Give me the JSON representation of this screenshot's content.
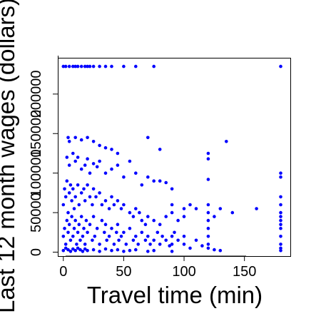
{
  "chart_data": {
    "type": "scatter",
    "title": "",
    "xlabel": "Travel time (min)",
    "ylabel": "Last 12 month wages (dollars)",
    "xlim": [
      -4,
      188
    ],
    "ylim": [
      -5000,
      245000
    ],
    "xticks": [
      0,
      50,
      100,
      150
    ],
    "xtick_labels": [
      "0",
      "50",
      "100",
      "150"
    ],
    "yticks": [
      0,
      50000,
      100000,
      150000,
      200000
    ],
    "ytick_labels": [
      "0",
      "50000",
      "100000",
      "150000",
      "200000"
    ],
    "grid": false,
    "legend": "none",
    "point_color": "#0000ff",
    "series": [
      {
        "values_xy": [
          [
            0,
            235000
          ],
          [
            2,
            235000
          ],
          [
            5,
            235000
          ],
          [
            8,
            235000
          ],
          [
            10,
            235000
          ],
          [
            12,
            235000
          ],
          [
            15,
            235000
          ],
          [
            18,
            235000
          ],
          [
            20,
            235000
          ],
          [
            22,
            235000
          ],
          [
            25,
            235000
          ],
          [
            30,
            235000
          ],
          [
            35,
            235000
          ],
          [
            40,
            235000
          ],
          [
            50,
            235000
          ],
          [
            60,
            235000
          ],
          [
            75,
            235000
          ],
          [
            180,
            235000
          ],
          [
            4,
            145000
          ],
          [
            10,
            145000
          ],
          [
            5,
            140000
          ],
          [
            15,
            142000
          ],
          [
            20,
            145000
          ],
          [
            25,
            140000
          ],
          [
            30,
            135000
          ],
          [
            35,
            132000
          ],
          [
            40,
            130000
          ],
          [
            45,
            125000
          ],
          [
            55,
            115000
          ],
          [
            70,
            145000
          ],
          [
            80,
            130000
          ],
          [
            120,
            125000
          ],
          [
            120,
            118000
          ],
          [
            135,
            140000
          ],
          [
            3,
            120000
          ],
          [
            5,
            110000
          ],
          [
            8,
            125000
          ],
          [
            10,
            115000
          ],
          [
            12,
            120000
          ],
          [
            15,
            105000
          ],
          [
            18,
            110000
          ],
          [
            20,
            118000
          ],
          [
            22,
            100000
          ],
          [
            25,
            112000
          ],
          [
            28,
            108000
          ],
          [
            30,
            115000
          ],
          [
            35,
            100000
          ],
          [
            40,
            105000
          ],
          [
            45,
            110000
          ],
          [
            50,
            95000
          ],
          [
            60,
            100000
          ],
          [
            65,
            85000
          ],
          [
            70,
            95000
          ],
          [
            75,
            90000
          ],
          [
            80,
            90000
          ],
          [
            85,
            88000
          ],
          [
            90,
            80000
          ],
          [
            120,
            92000
          ],
          [
            180,
            100000
          ],
          [
            180,
            95000
          ],
          [
            0,
            60000
          ],
          [
            1,
            80000
          ],
          [
            2,
            70000
          ],
          [
            3,
            90000
          ],
          [
            4,
            50000
          ],
          [
            5,
            75000
          ],
          [
            6,
            85000
          ],
          [
            7,
            65000
          ],
          [
            8,
            80000
          ],
          [
            9,
            55000
          ],
          [
            10,
            70000
          ],
          [
            12,
            85000
          ],
          [
            13,
            60000
          ],
          [
            15,
            75000
          ],
          [
            17,
            80000
          ],
          [
            18,
            65000
          ],
          [
            20,
            85000
          ],
          [
            22,
            70000
          ],
          [
            24,
            60000
          ],
          [
            25,
            80000
          ],
          [
            27,
            70000
          ],
          [
            30,
            75000
          ],
          [
            32,
            60000
          ],
          [
            35,
            65000
          ],
          [
            38,
            55000
          ],
          [
            40,
            70000
          ],
          [
            42,
            60000
          ],
          [
            45,
            65000
          ],
          [
            48,
            55000
          ],
          [
            50,
            60000
          ],
          [
            55,
            50000
          ],
          [
            58,
            45000
          ],
          [
            60,
            55000
          ],
          [
            63,
            50000
          ],
          [
            65,
            40000
          ],
          [
            68,
            35000
          ],
          [
            70,
            45000
          ],
          [
            75,
            40000
          ],
          [
            80,
            35000
          ],
          [
            85,
            45000
          ],
          [
            90,
            60000
          ],
          [
            90,
            50000
          ],
          [
            95,
            40000
          ],
          [
            100,
            55000
          ],
          [
            100,
            45000
          ],
          [
            105,
            60000
          ],
          [
            110,
            55000
          ],
          [
            120,
            60000
          ],
          [
            120,
            50000
          ],
          [
            120,
            40000
          ],
          [
            120,
            30000
          ],
          [
            125,
            45000
          ],
          [
            130,
            55000
          ],
          [
            140,
            50000
          ],
          [
            160,
            55000
          ],
          [
            180,
            70000
          ],
          [
            180,
            60000
          ],
          [
            180,
            50000
          ],
          [
            180,
            45000
          ],
          [
            180,
            40000
          ],
          [
            180,
            35000
          ],
          [
            180,
            30000
          ],
          [
            0,
            20000
          ],
          [
            1,
            30000
          ],
          [
            2,
            10000
          ],
          [
            3,
            40000
          ],
          [
            4,
            25000
          ],
          [
            5,
            35000
          ],
          [
            6,
            15000
          ],
          [
            7,
            45000
          ],
          [
            8,
            20000
          ],
          [
            9,
            30000
          ],
          [
            10,
            40000
          ],
          [
            11,
            10000
          ],
          [
            12,
            25000
          ],
          [
            13,
            35000
          ],
          [
            14,
            15000
          ],
          [
            15,
            45000
          ],
          [
            16,
            20000
          ],
          [
            17,
            30000
          ],
          [
            18,
            10000
          ],
          [
            19,
            40000
          ],
          [
            20,
            25000
          ],
          [
            22,
            35000
          ],
          [
            24,
            15000
          ],
          [
            25,
            45000
          ],
          [
            26,
            20000
          ],
          [
            28,
            30000
          ],
          [
            30,
            10000
          ],
          [
            32,
            40000
          ],
          [
            34,
            25000
          ],
          [
            35,
            35000
          ],
          [
            36,
            15000
          ],
          [
            38,
            20000
          ],
          [
            40,
            30000
          ],
          [
            42,
            10000
          ],
          [
            44,
            25000
          ],
          [
            45,
            35000
          ],
          [
            46,
            15000
          ],
          [
            48,
            20000
          ],
          [
            50,
            25000
          ],
          [
            52,
            10000
          ],
          [
            55,
            30000
          ],
          [
            58,
            15000
          ],
          [
            60,
            20000
          ],
          [
            62,
            10000
          ],
          [
            65,
            25000
          ],
          [
            68,
            15000
          ],
          [
            70,
            20000
          ],
          [
            72,
            10000
          ],
          [
            75,
            15000
          ],
          [
            78,
            25000
          ],
          [
            80,
            10000
          ],
          [
            82,
            20000
          ],
          [
            85,
            15000
          ],
          [
            88,
            8000
          ],
          [
            90,
            20000
          ],
          [
            90,
            10000
          ],
          [
            92,
            25000
          ],
          [
            95,
            15000
          ],
          [
            100,
            20000
          ],
          [
            100,
            10000
          ],
          [
            105,
            5000
          ],
          [
            110,
            15000
          ],
          [
            115,
            8000
          ],
          [
            120,
            20000
          ],
          [
            120,
            10000
          ],
          [
            120,
            5000
          ],
          [
            125,
            3000
          ],
          [
            130,
            2000
          ],
          [
            180,
            20000
          ],
          [
            180,
            10000
          ],
          [
            180,
            5000
          ],
          [
            180,
            2000
          ],
          [
            0,
            2000
          ],
          [
            2,
            5000
          ],
          [
            4,
            3000
          ],
          [
            6,
            1000
          ],
          [
            8,
            4000
          ],
          [
            10,
            2000
          ],
          [
            12,
            5000
          ],
          [
            14,
            3000
          ],
          [
            16,
            1000
          ],
          [
            18,
            4000
          ],
          [
            20,
            2000
          ],
          [
            25,
            3000
          ],
          [
            30,
            1000
          ],
          [
            35,
            4000
          ],
          [
            40,
            2000
          ],
          [
            45,
            3000
          ],
          [
            50,
            1000
          ],
          [
            55,
            2000
          ],
          [
            60,
            3000
          ],
          [
            70,
            1000
          ],
          [
            75,
            2000
          ],
          [
            90,
            1000
          ]
        ]
      }
    ]
  }
}
